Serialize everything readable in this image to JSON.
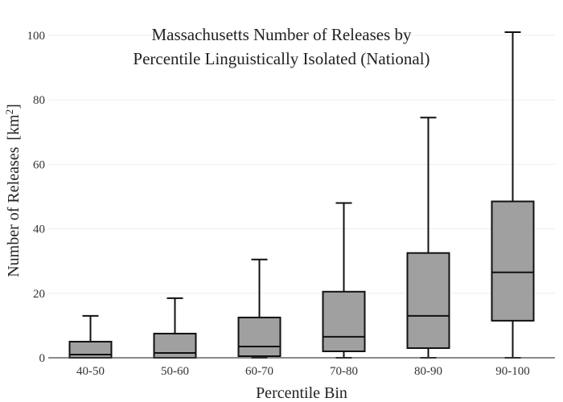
{
  "chart_data": {
    "type": "box",
    "title_lines": [
      "Massachusetts Number of Releases by",
      "Percentile Linguistically Isolated (National)"
    ],
    "xlabel": "Percentile Bin",
    "ylabel": "Number of Releases",
    "ylabel_unit": "[km",
    "ylabel_unit_sup": "2",
    "ylabel_unit_close": "]",
    "ylim": [
      0,
      100
    ],
    "yticks": [
      0,
      20,
      40,
      60,
      80,
      100
    ],
    "grid": true,
    "categories": [
      "40-50",
      "50-60",
      "60-70",
      "70-80",
      "80-90",
      "90-100"
    ],
    "boxes": [
      {
        "min": 0,
        "q1": 0,
        "median": 1,
        "q3": 5,
        "max": 13
      },
      {
        "min": 0,
        "q1": 0,
        "median": 1.5,
        "q3": 7.5,
        "max": 18.5
      },
      {
        "min": 0,
        "q1": 0.5,
        "median": 3.5,
        "q3": 12.5,
        "max": 30.5
      },
      {
        "min": 0,
        "q1": 2,
        "median": 6.5,
        "q3": 20.5,
        "max": 48
      },
      {
        "min": 0,
        "q1": 3,
        "median": 13,
        "q3": 32.5,
        "max": 74.5
      },
      {
        "min": 0,
        "q1": 11.5,
        "median": 26.5,
        "q3": 48.5,
        "max": 101
      }
    ],
    "colors": {
      "box_fill": "#a0a0a0",
      "box_stroke": "#111111"
    }
  }
}
